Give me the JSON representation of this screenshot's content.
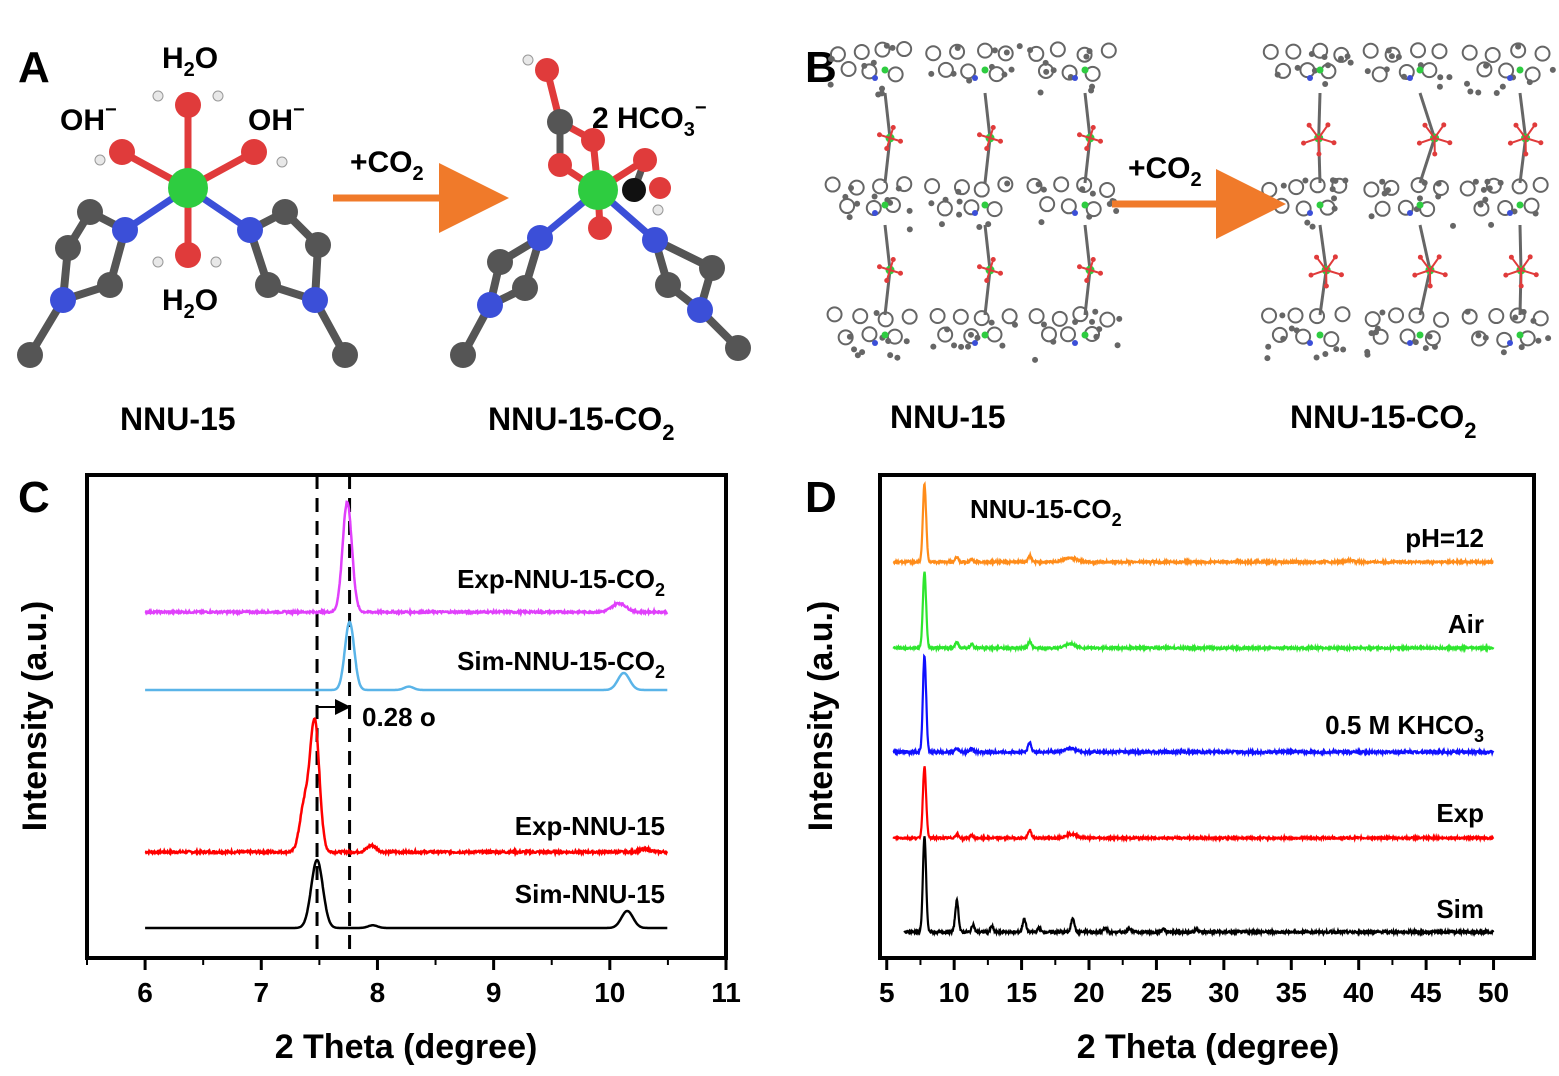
{
  "panels": {
    "A": {
      "letter": "A",
      "arrow_label": "+CO",
      "arrow_label_sub": "2",
      "left": {
        "caption": "NNU-15",
        "h2o_top": "H",
        "h2o_top_sub": "2",
        "h2o_top_tail": "O",
        "h2o_bottom": "H",
        "h2o_bottom_sub": "2",
        "h2o_bottom_tail": "O",
        "oh_left": "OH",
        "oh_left_sup": "−",
        "oh_right": "OH",
        "oh_right_sup": "−"
      },
      "right": {
        "caption": "NNU-15-CO",
        "caption_sub": "2",
        "hco3": "2 HCO",
        "hco3_sub": "3",
        "hco3_sup": "−"
      },
      "colors": {
        "metal": "#2ecc40",
        "oxygen": "#e03b3b",
        "nitrogen": "#3b4fd8",
        "carbon": "#5a5a5a",
        "hydrogen": "#e8e8e8",
        "arrow": "#f07a2a"
      }
    },
    "B": {
      "letter": "B",
      "arrow_label": "+CO",
      "arrow_label_sub": "2",
      "left_caption": "NNU-15",
      "right_caption": "NNU-15-CO",
      "right_caption_sub": "2"
    },
    "C": {
      "letter": "C",
      "shift_label": "0.28 o"
    },
    "D": {
      "letter": "D",
      "inset_label": "NNU-15-CO",
      "inset_label_sub": "2"
    }
  },
  "chart_data": [
    {
      "panel": "C",
      "type": "line",
      "xlabel": "2 Theta (degree)",
      "ylabel": "Intensity (a.u.)",
      "xlim": [
        5.5,
        11
      ],
      "xticks": [
        6,
        7,
        8,
        9,
        10,
        11
      ],
      "series": [
        {
          "name": "Sim-NNU-15",
          "color": "#000000",
          "peaks": [
            [
              7.48,
              1.0,
              0.05
            ],
            [
              7.96,
              0.04,
              0.04
            ],
            [
              10.15,
              0.25,
              0.05
            ]
          ]
        },
        {
          "name": "Exp-NNU-15",
          "color": "#ff0000",
          "peaks": [
            [
              7.46,
              1.0,
              0.04
            ],
            [
              7.37,
              0.35,
              0.04
            ],
            [
              7.95,
              0.05,
              0.04
            ],
            [
              10.3,
              0.02,
              0.05
            ]
          ]
        },
        {
          "name": "Sim-NNU-15-CO",
          "name_sub": "2",
          "color": "#5ab4e8",
          "peaks": [
            [
              7.76,
              1.0,
              0.04
            ],
            [
              8.27,
              0.05,
              0.04
            ],
            [
              10.12,
              0.25,
              0.05
            ]
          ]
        },
        {
          "name": "Exp-NNU-15-CO",
          "name_sub": "2",
          "color": "#e040fb",
          "peaks": [
            [
              7.74,
              1.0,
              0.04
            ],
            [
              10.08,
              0.08,
              0.06
            ]
          ]
        }
      ],
      "reference_lines": [
        7.48,
        7.76
      ]
    },
    {
      "panel": "D",
      "type": "line",
      "xlabel": "2 Theta (degree)",
      "ylabel": "Intensity (a.u.)",
      "xlim": [
        4.5,
        53
      ],
      "xticks": [
        5,
        10,
        15,
        20,
        25,
        30,
        35,
        40,
        45,
        50
      ],
      "series": [
        {
          "name": "Sim",
          "color": "#000000",
          "peaks": [
            [
              7.8,
              1.0,
              0.12
            ],
            [
              10.2,
              0.33,
              0.12
            ],
            [
              11.4,
              0.08,
              0.1
            ],
            [
              12.8,
              0.06,
              0.1
            ],
            [
              15.2,
              0.14,
              0.12
            ],
            [
              16.3,
              0.05,
              0.1
            ],
            [
              18.8,
              0.15,
              0.12
            ],
            [
              21.2,
              0.04,
              0.12
            ],
            [
              23.0,
              0.04,
              0.12
            ],
            [
              25.5,
              0.03,
              0.12
            ],
            [
              28.0,
              0.03,
              0.12
            ]
          ]
        },
        {
          "name": "Exp",
          "color": "#ff0000",
          "peaks": [
            [
              7.8,
              0.95,
              0.12
            ],
            [
              10.2,
              0.05,
              0.12
            ],
            [
              11.3,
              0.04,
              0.1
            ],
            [
              15.6,
              0.1,
              0.12
            ],
            [
              18.7,
              0.05,
              0.4
            ]
          ]
        },
        {
          "name": "0.5 M KHCO",
          "name_sub": "3",
          "color": "#1010ff",
          "peaks": [
            [
              7.8,
              1.0,
              0.12
            ],
            [
              10.2,
              0.04,
              0.12
            ],
            [
              11.3,
              0.04,
              0.1
            ],
            [
              15.6,
              0.1,
              0.12
            ],
            [
              18.6,
              0.04,
              0.4
            ]
          ]
        },
        {
          "name": "Air",
          "color": "#2ee62e",
          "peaks": [
            [
              7.8,
              0.95,
              0.12
            ],
            [
              10.2,
              0.08,
              0.12
            ],
            [
              11.3,
              0.05,
              0.1
            ],
            [
              15.6,
              0.08,
              0.12
            ],
            [
              18.6,
              0.05,
              0.4
            ]
          ]
        },
        {
          "name": "pH=12",
          "color": "#ff8c1a",
          "peaks": [
            [
              7.8,
              0.95,
              0.12
            ],
            [
              10.2,
              0.06,
              0.12
            ],
            [
              11.3,
              0.04,
              0.1
            ],
            [
              15.6,
              0.08,
              0.12
            ],
            [
              18.6,
              0.05,
              0.5
            ],
            [
              39.3,
              0.02,
              0.3
            ]
          ]
        }
      ]
    }
  ]
}
